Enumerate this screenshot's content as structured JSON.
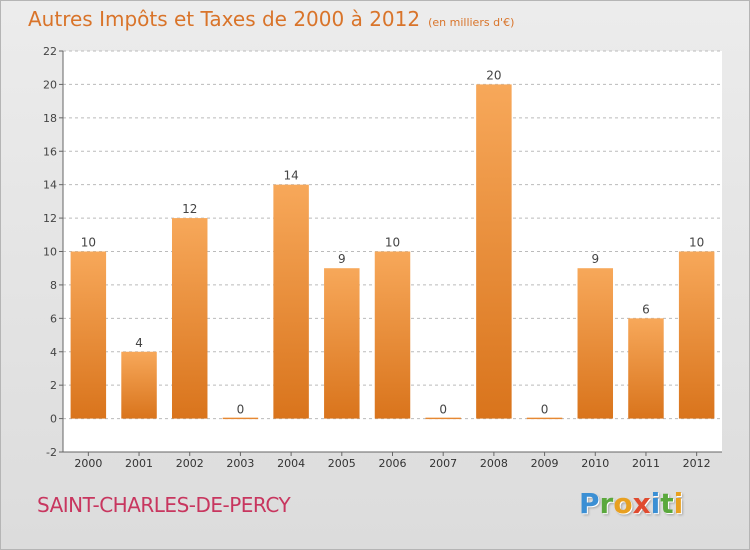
{
  "page": {
    "title": "Autres Impôts et Taxes de 2000 à 2012",
    "unit": "(en milliers d'€)",
    "city": "SAINT-CHARLES-DE-PERCY",
    "logo": [
      {
        "ch": "P",
        "color": "#3b8fd4"
      },
      {
        "ch": "r",
        "color": "#5aa83c"
      },
      {
        "ch": "o",
        "color": "#e8a020"
      },
      {
        "ch": "x",
        "color": "#e04a2e"
      },
      {
        "ch": "i",
        "color": "#3b8fd4"
      },
      {
        "ch": "t",
        "color": "#5aa83c"
      },
      {
        "ch": "i",
        "color": "#e8a020"
      }
    ]
  },
  "chart_data": {
    "type": "bar",
    "categories": [
      "2000",
      "2001",
      "2002",
      "2003",
      "2004",
      "2005",
      "2006",
      "2007",
      "2008",
      "2009",
      "2010",
      "2011",
      "2012"
    ],
    "values": [
      10,
      4,
      12,
      0,
      14,
      9,
      10,
      0,
      20,
      0,
      9,
      6,
      10
    ],
    "title": "Autres Impôts et Taxes de 2000 à 2012",
    "xlabel": "",
    "ylabel": "",
    "ylim": [
      -2,
      22
    ],
    "yticks": [
      -2,
      0,
      2,
      4,
      6,
      8,
      10,
      12,
      14,
      16,
      18,
      20,
      22
    ],
    "grid": "horizontal-dashed",
    "colors": {
      "bar_light": "#f7a85a",
      "bar_dark": "#d9741c",
      "grid": "#bbbbbb",
      "plot_bg": "#ffffff"
    }
  }
}
